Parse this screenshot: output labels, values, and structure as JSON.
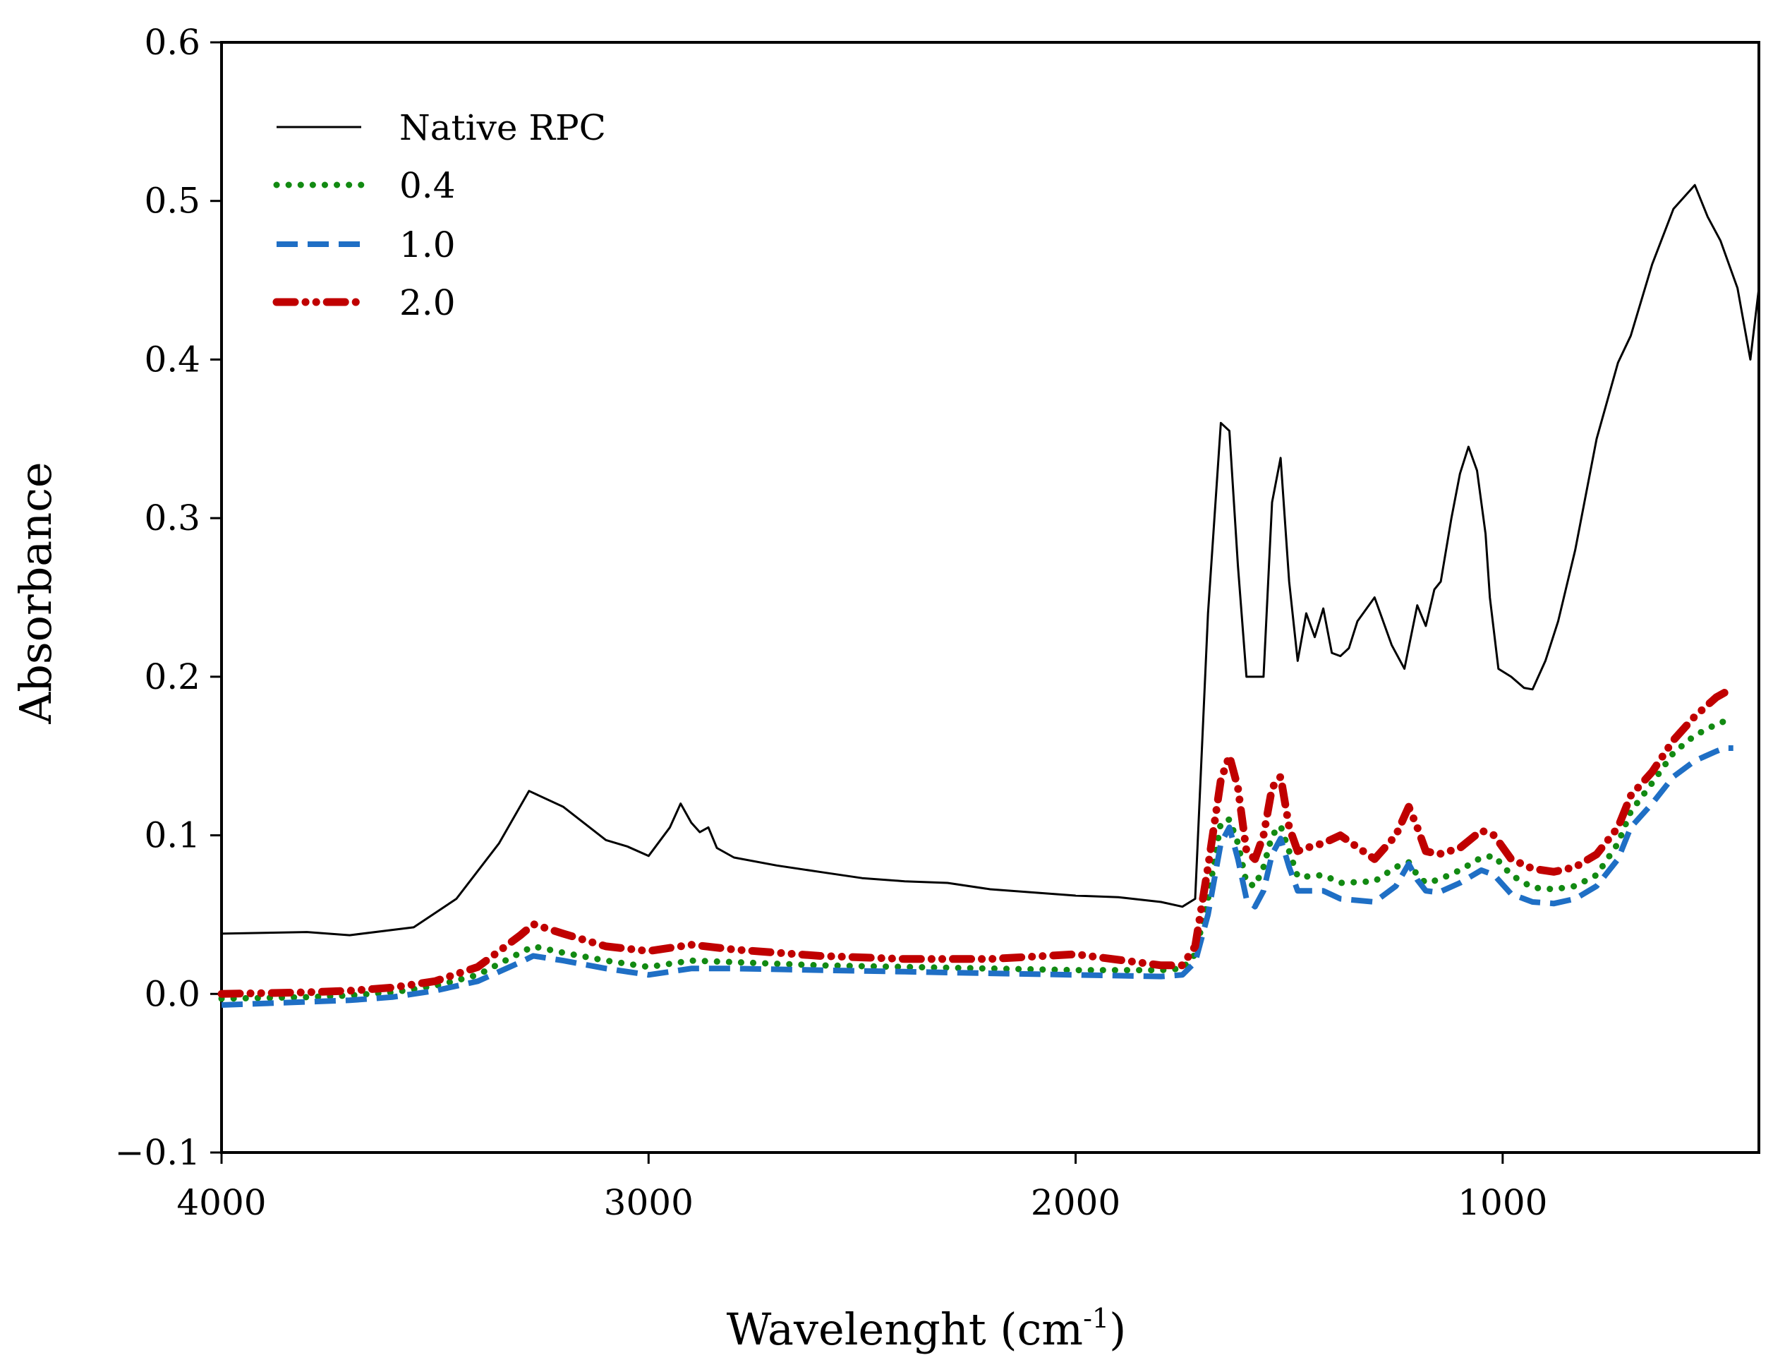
{
  "chart_data": {
    "type": "line",
    "title": "",
    "xlabel": "Wavelenght (cm",
    "xlabel_superscript": "-1",
    "xlabel_suffix": ")",
    "ylabel": "Absorbance",
    "xlim": [
      4000,
      400
    ],
    "ylim": [
      -0.1,
      0.6
    ],
    "x_ticks": [
      4000,
      3000,
      2000,
      1000
    ],
    "x_tick_labels": [
      "4000",
      "3000",
      "2000",
      "1000"
    ],
    "y_ticks": [
      -0.1,
      0.0,
      0.1,
      0.2,
      0.3,
      0.4,
      0.5,
      0.6
    ],
    "y_tick_labels": [
      "−0.1",
      "0.0",
      "0.1",
      "0.2",
      "0.3",
      "0.4",
      "0.5",
      "0.6"
    ],
    "grid": false,
    "legend_position": "top-left",
    "series": [
      {
        "name": "Native RPC",
        "color": "#000000",
        "style": "solid",
        "x": [
          4000,
          3800,
          3700,
          3550,
          3450,
          3350,
          3280,
          3200,
          3100,
          3050,
          3000,
          2950,
          2925,
          2900,
          2880,
          2860,
          2840,
          2800,
          2700,
          2600,
          2500,
          2400,
          2300,
          2200,
          2100,
          2000,
          1900,
          1800,
          1750,
          1720,
          1690,
          1660,
          1640,
          1620,
          1600,
          1560,
          1540,
          1520,
          1500,
          1480,
          1460,
          1440,
          1420,
          1400,
          1380,
          1360,
          1340,
          1300,
          1260,
          1230,
          1200,
          1180,
          1160,
          1145,
          1120,
          1100,
          1080,
          1060,
          1040,
          1030,
          1010,
          980,
          950,
          930,
          900,
          870,
          830,
          780,
          730,
          700,
          650,
          600,
          550,
          520,
          490,
          470,
          450,
          420,
          400
        ],
        "y": [
          0.038,
          0.039,
          0.037,
          0.042,
          0.06,
          0.095,
          0.128,
          0.118,
          0.097,
          0.093,
          0.087,
          0.105,
          0.12,
          0.108,
          0.102,
          0.105,
          0.092,
          0.086,
          0.081,
          0.077,
          0.073,
          0.071,
          0.07,
          0.066,
          0.064,
          0.062,
          0.061,
          0.058,
          0.055,
          0.06,
          0.24,
          0.36,
          0.355,
          0.27,
          0.2,
          0.2,
          0.31,
          0.338,
          0.26,
          0.21,
          0.24,
          0.225,
          0.243,
          0.215,
          0.213,
          0.218,
          0.235,
          0.25,
          0.22,
          0.205,
          0.245,
          0.232,
          0.255,
          0.26,
          0.3,
          0.328,
          0.345,
          0.33,
          0.29,
          0.25,
          0.205,
          0.2,
          0.193,
          0.192,
          0.21,
          0.235,
          0.28,
          0.35,
          0.398,
          0.415,
          0.46,
          0.495,
          0.51,
          0.49,
          0.475,
          0.46,
          0.445,
          0.4,
          0.445
        ]
      },
      {
        "name": "0.4",
        "color": "#128a12",
        "style": "dotted",
        "x": [
          4000,
          3800,
          3700,
          3600,
          3500,
          3400,
          3300,
          3270,
          3200,
          3100,
          3000,
          2900,
          2800,
          2600,
          2400,
          2200,
          2000,
          1800,
          1750,
          1720,
          1690,
          1660,
          1640,
          1620,
          1600,
          1580,
          1560,
          1540,
          1520,
          1500,
          1480,
          1460,
          1420,
          1380,
          1300,
          1250,
          1220,
          1200,
          1180,
          1150,
          1100,
          1050,
          1020,
          980,
          930,
          880,
          830,
          780,
          730,
          700,
          650,
          600,
          550,
          500,
          480,
          460
        ],
        "y": [
          -0.003,
          -0.002,
          -0.001,
          0.001,
          0.005,
          0.012,
          0.026,
          0.03,
          0.026,
          0.021,
          0.017,
          0.021,
          0.02,
          0.018,
          0.017,
          0.016,
          0.015,
          0.015,
          0.016,
          0.025,
          0.06,
          0.108,
          0.11,
          0.095,
          0.07,
          0.068,
          0.08,
          0.1,
          0.106,
          0.09,
          0.074,
          0.074,
          0.075,
          0.07,
          0.071,
          0.08,
          0.083,
          0.075,
          0.07,
          0.072,
          0.078,
          0.086,
          0.087,
          0.075,
          0.067,
          0.066,
          0.068,
          0.075,
          0.095,
          0.115,
          0.133,
          0.152,
          0.163,
          0.17,
          0.172,
          0.174
        ]
      },
      {
        "name": "1.0",
        "color": "#1f6fc5",
        "style": "dashed",
        "x": [
          4000,
          3800,
          3700,
          3600,
          3500,
          3400,
          3300,
          3270,
          3200,
          3100,
          3000,
          2900,
          2800,
          2600,
          2400,
          2200,
          2000,
          1800,
          1750,
          1720,
          1690,
          1660,
          1640,
          1620,
          1600,
          1580,
          1560,
          1540,
          1520,
          1500,
          1480,
          1460,
          1420,
          1380,
          1300,
          1250,
          1220,
          1200,
          1180,
          1150,
          1100,
          1050,
          1020,
          980,
          930,
          880,
          830,
          780,
          730,
          700,
          650,
          600,
          550,
          500,
          480,
          460
        ],
        "y": [
          -0.007,
          -0.005,
          -0.004,
          -0.002,
          0.002,
          0.008,
          0.02,
          0.024,
          0.021,
          0.016,
          0.012,
          0.016,
          0.016,
          0.015,
          0.014,
          0.013,
          0.012,
          0.011,
          0.012,
          0.02,
          0.05,
          0.095,
          0.105,
          0.085,
          0.06,
          0.055,
          0.065,
          0.088,
          0.098,
          0.08,
          0.065,
          0.065,
          0.065,
          0.06,
          0.058,
          0.068,
          0.082,
          0.072,
          0.065,
          0.064,
          0.07,
          0.078,
          0.075,
          0.063,
          0.058,
          0.057,
          0.06,
          0.068,
          0.085,
          0.105,
          0.12,
          0.137,
          0.147,
          0.153,
          0.155,
          0.155
        ]
      },
      {
        "name": "2.0",
        "color": "#c00000",
        "style": "dash-dot-dot",
        "x": [
          4000,
          3800,
          3700,
          3600,
          3500,
          3400,
          3300,
          3270,
          3200,
          3100,
          3000,
          2900,
          2800,
          2600,
          2400,
          2200,
          2000,
          1800,
          1750,
          1720,
          1690,
          1660,
          1640,
          1620,
          1600,
          1580,
          1560,
          1540,
          1520,
          1500,
          1480,
          1460,
          1420,
          1380,
          1300,
          1250,
          1220,
          1200,
          1180,
          1150,
          1100,
          1050,
          1020,
          980,
          930,
          880,
          830,
          780,
          730,
          700,
          650,
          600,
          550,
          500,
          480,
          460
        ],
        "y": [
          0.0,
          0.001,
          0.002,
          0.004,
          0.008,
          0.017,
          0.037,
          0.044,
          0.038,
          0.03,
          0.027,
          0.031,
          0.028,
          0.024,
          0.022,
          0.022,
          0.025,
          0.018,
          0.018,
          0.03,
          0.08,
          0.135,
          0.15,
          0.13,
          0.09,
          0.085,
          0.1,
          0.13,
          0.137,
          0.105,
          0.09,
          0.092,
          0.095,
          0.1,
          0.085,
          0.1,
          0.118,
          0.105,
          0.09,
          0.088,
          0.092,
          0.103,
          0.1,
          0.085,
          0.079,
          0.077,
          0.08,
          0.088,
          0.105,
          0.125,
          0.14,
          0.16,
          0.175,
          0.187,
          0.19,
          0.19
        ]
      }
    ]
  }
}
